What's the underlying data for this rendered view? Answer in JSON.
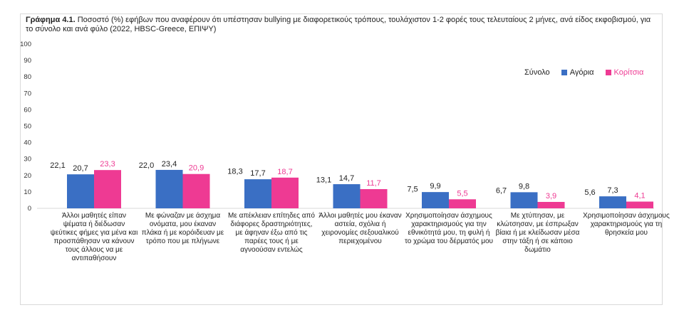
{
  "chart_data": {
    "type": "bar",
    "title_prefix": "Γράφημα 4.1.",
    "title": "Ποσοστό (%) εφήβων που αναφέρουν ότι υπέστησαν bullying με διαφορετικούς τρόπους, τουλάχιστον 1-2 φορές τους τελευταίους 2 μήνες, ανά είδος εκφοβισμού, για το σύνολο και ανά φύλο (2022, HBSC-Greece, ΕΠΙΨΥ)",
    "ylim": [
      0,
      100
    ],
    "yticks": [
      "0",
      "10",
      "20",
      "30",
      "40",
      "50",
      "60",
      "70",
      "80",
      "90",
      "100"
    ],
    "categories": [
      "Άλλοι μαθητές είπαν ψέματα ή διέδωσαν ψεύτικες φήμες για μένα και προσπάθησαν να κάνουν τους άλλους να με αντιπαθήσουν",
      "Με φώναζαν με άσχημα ονόματα, μου έκαναν πλάκα ή με κορόιδευαν με τρόπο που με πλήγωνε",
      "Με απέκλειαν επίτηδες από διάφορες δραστηριότητες, με άφηναν έξω από τις παρέες τους ή με αγνοούσαν εντελώς",
      "Άλλοι μαθητές μου έκαναν αστεία, σχόλια ή χειρονομίες σεξουαλικού περιεχομένου",
      "Χρησιμοποίησαν άσχημους χαρακτηρισμούς για την εθνικότητά μου, τη φυλή ή το χρώμα του δέρματός μου",
      "Με χτύπησαν, με κλώτσησαν, με έσπρωξαν βίαια ή με κλείδωσαν μέσα στην τάξη ή σε κάποιο δωμάτιο",
      "Χρησιμοποίησαν άσχημους χαρακτηρισμούς για τη θρησκεία μου"
    ],
    "series": [
      {
        "name": "Σύνολο",
        "values": [
          22.1,
          22.0,
          18.3,
          13.1,
          7.5,
          6.7,
          5.6
        ],
        "labels": [
          "22,1",
          "22,0",
          "18,3",
          "13,1",
          "7,5",
          "6,7",
          "5,6"
        ],
        "color": "#222222"
      },
      {
        "name": "Αγόρια",
        "values": [
          20.7,
          23.4,
          17.7,
          14.7,
          9.9,
          9.8,
          7.3
        ],
        "labels": [
          "20,7",
          "23,4",
          "17,7",
          "14,7",
          "9,9",
          "9,8",
          "7,3"
        ],
        "color": "#3a6fc4"
      },
      {
        "name": "Κορίτσια",
        "values": [
          23.3,
          20.9,
          18.7,
          11.7,
          5.5,
          3.9,
          4.1
        ],
        "labels": [
          "23,3",
          "20,9",
          "18,7",
          "11,7",
          "5,5",
          "3,9",
          "4,1"
        ],
        "color": "#ee3a93"
      }
    ],
    "legend_position": "top-right",
    "grid": false
  }
}
